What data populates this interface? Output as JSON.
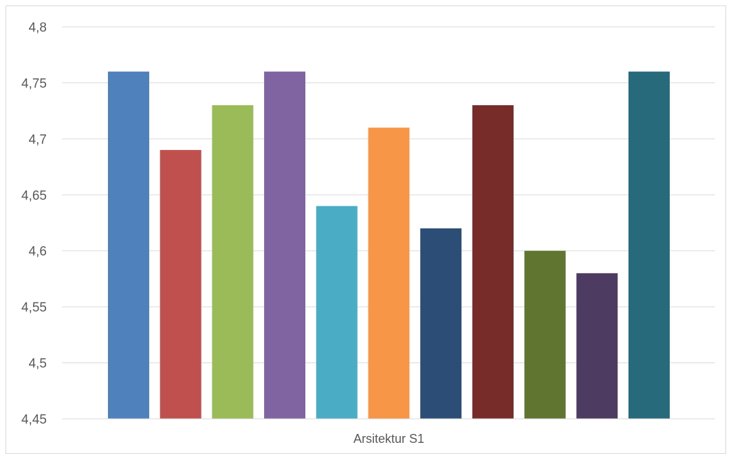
{
  "chart_data": {
    "type": "bar",
    "categories": [
      "Arsitektur S1"
    ],
    "series": [
      {
        "values": [
          4.76
        ],
        "color": "#4f81bd"
      },
      {
        "values": [
          4.69
        ],
        "color": "#c0504d"
      },
      {
        "values": [
          4.73
        ],
        "color": "#9bbb59"
      },
      {
        "values": [
          4.76
        ],
        "color": "#8064a2"
      },
      {
        "values": [
          4.64
        ],
        "color": "#4bacc6"
      },
      {
        "values": [
          4.71
        ],
        "color": "#f79646"
      },
      {
        "values": [
          4.62
        ],
        "color": "#2c4d75"
      },
      {
        "values": [
          4.73
        ],
        "color": "#772c2a"
      },
      {
        "values": [
          4.6
        ],
        "color": "#5f7530"
      },
      {
        "values": [
          4.58
        ],
        "color": "#4d3b62"
      },
      {
        "values": [
          4.76
        ],
        "color": "#276a7c"
      }
    ],
    "ylim": [
      4.45,
      4.8
    ],
    "yticks": [
      "4,45",
      "4,5",
      "4,55",
      "4,6",
      "4,65",
      "4,7",
      "4,75",
      "4,8"
    ],
    "grid": true,
    "title": "",
    "xlabel": "",
    "ylabel": ""
  }
}
